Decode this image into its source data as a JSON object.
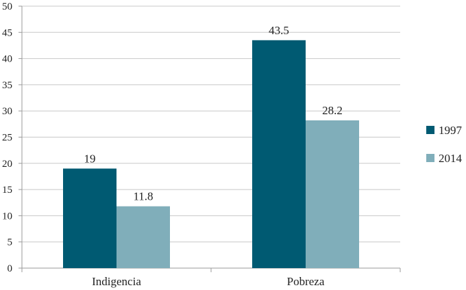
{
  "chart_data": {
    "type": "bar",
    "categories": [
      "Indigencia",
      "Pobreza"
    ],
    "series": [
      {
        "name": "1997",
        "values": [
          19,
          43.5
        ],
        "color": "#005A72"
      },
      {
        "name": "2014",
        "values": [
          11.8,
          28.2
        ],
        "color": "#80AEBA"
      }
    ],
    "title": "",
    "xlabel": "",
    "ylabel": "",
    "ylim": [
      0,
      50
    ],
    "yticks": [
      0,
      5,
      10,
      15,
      20,
      25,
      30,
      35,
      40,
      45,
      50
    ],
    "grid": true,
    "legend": "right"
  }
}
